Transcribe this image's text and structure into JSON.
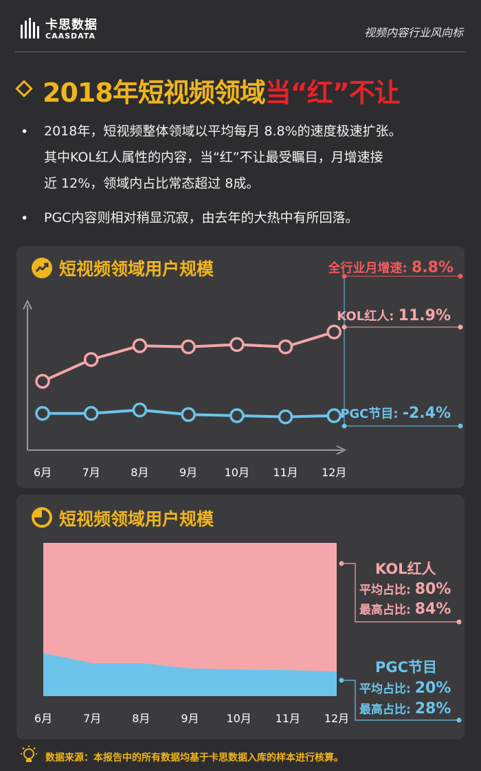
{
  "brand": {
    "name_cn": "卡思数据",
    "name_en": "CAASDATA",
    "tagline": "视频内容行业风向标"
  },
  "title": {
    "part1": "2018年短视频领域",
    "part2": "当“红”不让"
  },
  "bullets": [
    {
      "lines": [
        "2018年，短视频整体领域以平均每月  8.8%的速度极速扩张。",
        "其中KOL红人属性的内容，当“红”不让最受瞩目，月增速接",
        "近 12%，领域内占比常态超过 8成。"
      ]
    },
    {
      "lines": [
        "PGC内容则相对稍显沉寂，由去年的大热中有所回落。"
      ]
    }
  ],
  "chart1_ann": {
    "industry_label": "全行业月增速: ",
    "industry_value": "8.8%",
    "kol_label": "KOL红人: ",
    "kol_value": "11.9%",
    "pgc_label": "PGC节目: ",
    "pgc_value": "-2.4%"
  },
  "chart2_ann": {
    "kol_title": "KOL红人",
    "kol_avg_label": "平均占比: ",
    "kol_avg_value": "80%",
    "kol_max_label": "最高占比: ",
    "kol_max_value": "84%",
    "pgc_title": "PGC节目",
    "pgc_avg_label": "平均占比: ",
    "pgc_avg_value": "20%",
    "pgc_max_label": "最高占比: ",
    "pgc_max_value": "28%"
  },
  "footer": {
    "source": "数据来源：本报告中的所有数据均基于卡思数据入库的样本进行核算。"
  },
  "colors": {
    "kol": "#f4a6aa",
    "pgc": "#6cc4ea",
    "accent": "#f0b51c",
    "red": "#e8222a"
  },
  "chart_data": [
    {
      "type": "line",
      "title": "短视频领域用户规模",
      "categories": [
        "6月",
        "7月",
        "8月",
        "9月",
        "10月",
        "11月",
        "12月"
      ],
      "series": [
        {
          "name": "KOL红人",
          "values": [
            60,
            79,
            91,
            90,
            92,
            90,
            103
          ]
        },
        {
          "name": "PGC节目",
          "values": [
            32,
            32,
            35,
            31,
            30,
            29,
            30
          ]
        }
      ],
      "ylim": [
        0,
        130
      ]
    },
    {
      "type": "area",
      "title": "短视频领域用户规模",
      "categories": [
        "6月",
        "7月",
        "8月",
        "9月",
        "10月",
        "11月",
        "12月"
      ],
      "series": [
        {
          "name": "PGC节目",
          "values": [
            28,
            21.5,
            21.5,
            18,
            17.3,
            17,
            16
          ]
        },
        {
          "name": "KOL红人",
          "values": [
            72,
            78.5,
            78.5,
            82,
            82.7,
            83,
            84
          ]
        }
      ],
      "ylim": [
        0,
        100
      ]
    }
  ]
}
